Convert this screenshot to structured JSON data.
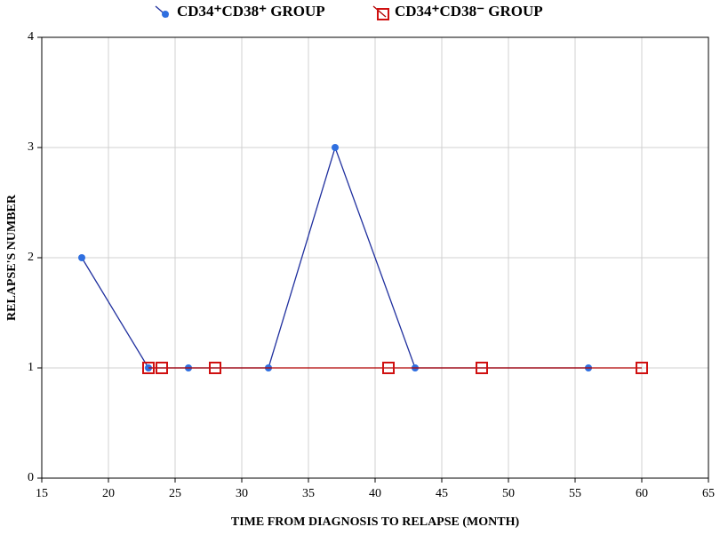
{
  "chart_data": {
    "type": "line",
    "xlabel": "TIME FROM DIAGNOSIS TO RELAPSE (MONTH)",
    "ylabel": "RELAPSE'S NUMBER",
    "xlim": [
      15,
      65
    ],
    "xticks": [
      15,
      20,
      25,
      30,
      35,
      40,
      45,
      50,
      55,
      60,
      65
    ],
    "ylim": [
      0,
      4
    ],
    "yticks": [
      0,
      1,
      2,
      3,
      4
    ],
    "grid": true,
    "legend": "top",
    "series": [
      {
        "name": "CD34⁺CD38⁺ GROUP",
        "color": "#1f2f9e",
        "marker": "circle",
        "marker_color": "#2f6fe0",
        "x": [
          18,
          23,
          26,
          32,
          37,
          43,
          56
        ],
        "values": [
          2,
          1,
          1,
          1,
          3,
          1,
          1
        ]
      },
      {
        "name": "CD34⁺CD38⁻ GROUP",
        "color": "#b00000",
        "marker": "square",
        "marker_color": "#d01010",
        "x": [
          23,
          24,
          28,
          41,
          48,
          60
        ],
        "values": [
          1,
          1,
          1,
          1,
          1,
          1
        ]
      }
    ]
  }
}
